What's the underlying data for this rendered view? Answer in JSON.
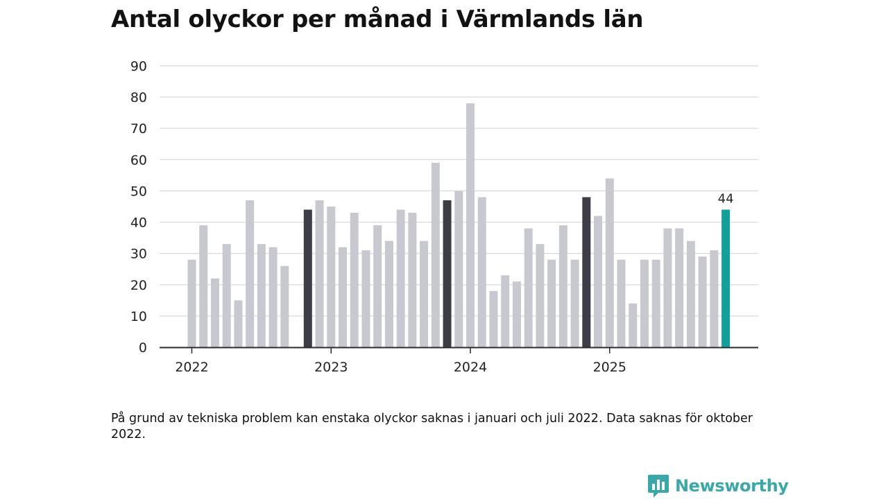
{
  "title": "Antal olyckor per månad i Värmlands län",
  "chart_data": {
    "type": "bar",
    "title": "Antal olyckor per månad i Värmlands län",
    "xlabel": "",
    "ylabel": "",
    "ylim": [
      0,
      90
    ],
    "yticks": [
      0,
      10,
      20,
      30,
      40,
      50,
      60,
      70,
      80,
      90
    ],
    "year_labels": [
      {
        "label": "2022",
        "index": 0
      },
      {
        "label": "2023",
        "index": 12
      },
      {
        "label": "2024",
        "index": 24
      },
      {
        "label": "2025",
        "index": 36
      }
    ],
    "categories": [
      "2022-01",
      "2022-02",
      "2022-03",
      "2022-04",
      "2022-05",
      "2022-06",
      "2022-07",
      "2022-08",
      "2022-09",
      "2022-10",
      "2022-11",
      "2022-12",
      "2023-01",
      "2023-02",
      "2023-03",
      "2023-04",
      "2023-05",
      "2023-06",
      "2023-07",
      "2023-08",
      "2023-09",
      "2023-10",
      "2023-11",
      "2023-12",
      "2024-01",
      "2024-02",
      "2024-03",
      "2024-04",
      "2024-05",
      "2024-06",
      "2024-07",
      "2024-08",
      "2024-09",
      "2024-10",
      "2024-11",
      "2024-12",
      "2025-01",
      "2025-02",
      "2025-03",
      "2025-04",
      "2025-05",
      "2025-06",
      "2025-07",
      "2025-08",
      "2025-09",
      "2025-10",
      "2025-11"
    ],
    "values": [
      28,
      39,
      22,
      33,
      15,
      47,
      33,
      32,
      26,
      null,
      44,
      47,
      45,
      32,
      43,
      31,
      39,
      34,
      44,
      43,
      34,
      59,
      47,
      50,
      78,
      48,
      18,
      23,
      21,
      38,
      33,
      28,
      39,
      28,
      48,
      42,
      54,
      28,
      14,
      28,
      28,
      38,
      38,
      34,
      29,
      31,
      44
    ],
    "highlight_dark_indices": [
      10,
      22,
      34
    ],
    "highlight_latest_index": 46,
    "latest_value_label": "44",
    "grid": true,
    "colors": {
      "default": "#c8c8d0",
      "dark": "#3d3d47",
      "latest": "#14a09a",
      "grid": "#dcdce0",
      "axis": "#2b2b33"
    }
  },
  "footnote": "På grund av tekniska problem kan enstaka olyckor saknas i januari och juli 2022. Data saknas för oktober 2022.",
  "brand": {
    "name": "Newsworthy",
    "color": "#3aa8a8"
  }
}
